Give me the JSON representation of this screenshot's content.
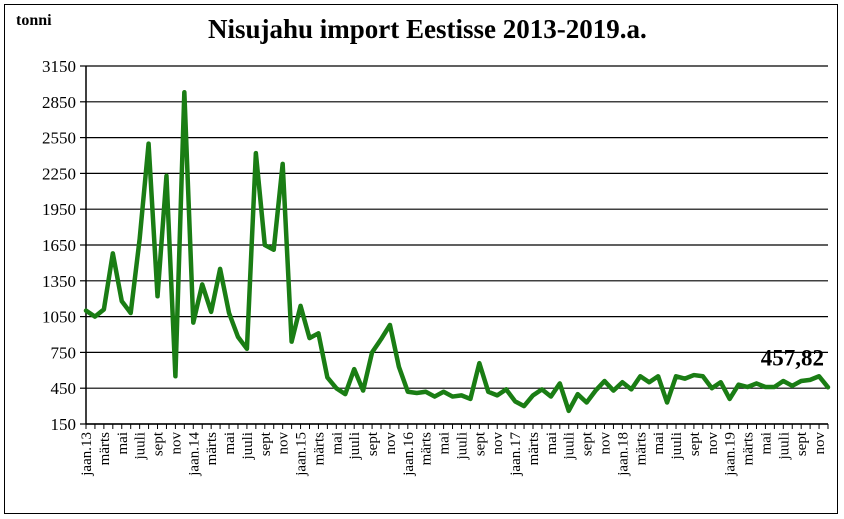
{
  "chart_data": {
    "type": "line",
    "title": "Nisujahu import  Eestisse 2013-2019.a.",
    "ylabel": "tonni",
    "xlabel": "",
    "ylim": [
      150,
      3150
    ],
    "yticks": [
      150,
      450,
      750,
      1050,
      1350,
      1650,
      1950,
      2250,
      2550,
      2850,
      3150
    ],
    "grid": true,
    "legend": "none",
    "line_color": "#1a7d14",
    "x_tick_labels": [
      "jaan.13",
      "märts",
      "mai",
      "juuli",
      "sept",
      "nov",
      "jaan.14",
      "märts",
      "mai",
      "juuli",
      "sept",
      "nov",
      "jaan.15",
      "märts",
      "mai",
      "juuli",
      "sept",
      "nov",
      "jaan.16",
      "märts",
      "mai",
      "juuli",
      "sept",
      "nov",
      "jaan.17",
      "märts",
      "mai",
      "juuli",
      "sept",
      "nov",
      "jaan.18",
      "märts",
      "mai",
      "juuli",
      "sept",
      "nov",
      "jaan.19",
      "märts",
      "mai",
      "juuli",
      "sept",
      "nov"
    ],
    "series": [
      {
        "values": [
          1100,
          1050,
          1110,
          1580,
          1180,
          1080,
          1700,
          2500,
          1220,
          2230,
          550,
          2930,
          1000,
          1320,
          1090,
          1450,
          1080,
          880,
          780,
          2420,
          1650,
          1610,
          2330,
          840,
          1140,
          870,
          910,
          540,
          450,
          400,
          610,
          430,
          750,
          860,
          980,
          630,
          420,
          410,
          420,
          380,
          420,
          380,
          390,
          360,
          660,
          420,
          390,
          440,
          340,
          300,
          390,
          440,
          380,
          490,
          260,
          400,
          330,
          430,
          510,
          430,
          500,
          440,
          550,
          500,
          550,
          330,
          550,
          530,
          560,
          550,
          450,
          500,
          360,
          480,
          460,
          490,
          460,
          460,
          510,
          470,
          510,
          520,
          550,
          457.82
        ]
      }
    ],
    "annotation": "457,82"
  }
}
